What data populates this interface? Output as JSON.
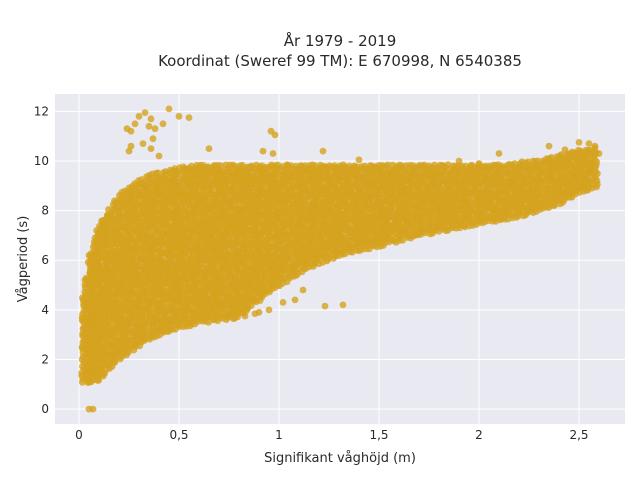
{
  "chart_data": {
    "type": "scatter",
    "title": "År 1979 - 2019",
    "subtitle": "Koordinat (Sweref 99 TM): E 670998, N 6540385",
    "xlabel": "Signifikant våghöjd (m)",
    "ylabel": "Vågperiod (s)",
    "xlim": [
      -0.12,
      2.73
    ],
    "ylim": [
      -0.6,
      12.7
    ],
    "x_ticks": [
      0,
      0.5,
      1,
      1.5,
      2,
      2.5
    ],
    "x_tick_labels": [
      "0",
      "0,5",
      "1",
      "1,5",
      "2",
      "2,5"
    ],
    "y_ticks": [
      0,
      2,
      4,
      6,
      8,
      10,
      12
    ],
    "y_tick_labels": [
      "0",
      "2",
      "4",
      "6",
      "8",
      "10",
      "12"
    ],
    "grid": true,
    "background_color": "#e9e9f2",
    "grid_color": "#ffffff",
    "marker_color": "#d4a31e",
    "density_envelope": [
      {
        "x": 0.02,
        "y_min": 1.1,
        "y_max": 4.5
      },
      {
        "x": 0.06,
        "y_min": 1.1,
        "y_max": 6.3
      },
      {
        "x": 0.1,
        "y_min": 1.2,
        "y_max": 7.4
      },
      {
        "x": 0.15,
        "y_min": 1.6,
        "y_max": 8.0
      },
      {
        "x": 0.2,
        "y_min": 2.0,
        "y_max": 8.6
      },
      {
        "x": 0.25,
        "y_min": 2.3,
        "y_max": 8.9
      },
      {
        "x": 0.3,
        "y_min": 2.6,
        "y_max": 9.2
      },
      {
        "x": 0.35,
        "y_min": 2.8,
        "y_max": 9.4
      },
      {
        "x": 0.4,
        "y_min": 3.0,
        "y_max": 9.5
      },
      {
        "x": 0.5,
        "y_min": 3.3,
        "y_max": 9.7
      },
      {
        "x": 0.6,
        "y_min": 3.5,
        "y_max": 9.8
      },
      {
        "x": 0.7,
        "y_min": 3.6,
        "y_max": 9.8
      },
      {
        "x": 0.8,
        "y_min": 3.7,
        "y_max": 9.8
      },
      {
        "x": 0.9,
        "y_min": 4.4,
        "y_max": 9.8
      },
      {
        "x": 1.0,
        "y_min": 5.0,
        "y_max": 9.8
      },
      {
        "x": 1.1,
        "y_min": 5.5,
        "y_max": 9.8
      },
      {
        "x": 1.2,
        "y_min": 5.9,
        "y_max": 9.8
      },
      {
        "x": 1.3,
        "y_min": 6.2,
        "y_max": 9.8
      },
      {
        "x": 1.4,
        "y_min": 6.4,
        "y_max": 9.8
      },
      {
        "x": 1.5,
        "y_min": 6.6,
        "y_max": 9.8
      },
      {
        "x": 1.6,
        "y_min": 6.8,
        "y_max": 9.8
      },
      {
        "x": 1.7,
        "y_min": 7.0,
        "y_max": 9.8
      },
      {
        "x": 1.8,
        "y_min": 7.2,
        "y_max": 9.8
      },
      {
        "x": 1.9,
        "y_min": 7.3,
        "y_max": 9.8
      },
      {
        "x": 2.0,
        "y_min": 7.5,
        "y_max": 9.8
      },
      {
        "x": 2.1,
        "y_min": 7.6,
        "y_max": 9.8
      },
      {
        "x": 2.2,
        "y_min": 7.8,
        "y_max": 9.9
      },
      {
        "x": 2.3,
        "y_min": 8.0,
        "y_max": 10.0
      },
      {
        "x": 2.4,
        "y_min": 8.3,
        "y_max": 10.2
      },
      {
        "x": 2.5,
        "y_min": 8.7,
        "y_max": 10.4
      },
      {
        "x": 2.6,
        "y_min": 9.0,
        "y_max": 10.5
      }
    ],
    "points": [
      {
        "x": 0.05,
        "y": 0.0
      },
      {
        "x": 0.07,
        "y": 0.0
      },
      {
        "x": 0.3,
        "y": 11.8
      },
      {
        "x": 0.33,
        "y": 11.95
      },
      {
        "x": 0.36,
        "y": 11.7
      },
      {
        "x": 0.42,
        "y": 11.5
      },
      {
        "x": 0.45,
        "y": 12.1
      },
      {
        "x": 0.5,
        "y": 11.8
      },
      {
        "x": 0.55,
        "y": 11.75
      },
      {
        "x": 0.35,
        "y": 11.4
      },
      {
        "x": 0.38,
        "y": 11.3
      },
      {
        "x": 0.28,
        "y": 11.5
      },
      {
        "x": 0.24,
        "y": 11.3
      },
      {
        "x": 0.26,
        "y": 11.2
      },
      {
        "x": 0.25,
        "y": 10.4
      },
      {
        "x": 0.26,
        "y": 10.6
      },
      {
        "x": 0.32,
        "y": 10.7
      },
      {
        "x": 0.36,
        "y": 10.5
      },
      {
        "x": 0.4,
        "y": 10.2
      },
      {
        "x": 0.37,
        "y": 10.9
      },
      {
        "x": 0.65,
        "y": 10.5
      },
      {
        "x": 0.96,
        "y": 11.2
      },
      {
        "x": 0.98,
        "y": 11.05
      },
      {
        "x": 0.92,
        "y": 10.4
      },
      {
        "x": 0.97,
        "y": 10.3
      },
      {
        "x": 1.22,
        "y": 10.4
      },
      {
        "x": 1.4,
        "y": 10.05
      },
      {
        "x": 2.1,
        "y": 10.3
      },
      {
        "x": 2.35,
        "y": 10.6
      },
      {
        "x": 2.5,
        "y": 10.75
      },
      {
        "x": 2.55,
        "y": 10.7
      },
      {
        "x": 2.58,
        "y": 10.6
      },
      {
        "x": 2.48,
        "y": 10.2
      },
      {
        "x": 2.6,
        "y": 10.3
      },
      {
        "x": 2.43,
        "y": 10.45
      },
      {
        "x": 2.0,
        "y": 9.9
      },
      {
        "x": 1.9,
        "y": 10.0
      },
      {
        "x": 1.32,
        "y": 4.2
      },
      {
        "x": 1.23,
        "y": 4.15
      },
      {
        "x": 1.08,
        "y": 4.4
      },
      {
        "x": 1.12,
        "y": 4.8
      },
      {
        "x": 0.95,
        "y": 4.0
      },
      {
        "x": 0.88,
        "y": 3.85
      },
      {
        "x": 0.83,
        "y": 3.75
      },
      {
        "x": 0.9,
        "y": 3.9
      },
      {
        "x": 1.02,
        "y": 4.3
      },
      {
        "x": 0.04,
        "y": 1.2
      },
      {
        "x": 0.06,
        "y": 1.1
      },
      {
        "x": 0.1,
        "y": 1.3
      },
      {
        "x": 0.02,
        "y": 3.6
      },
      {
        "x": 0.02,
        "y": 4.4
      },
      {
        "x": 0.03,
        "y": 5.2
      },
      {
        "x": 0.05,
        "y": 6.2
      },
      {
        "x": 0.08,
        "y": 6.9
      },
      {
        "x": 0.12,
        "y": 7.6
      }
    ]
  }
}
